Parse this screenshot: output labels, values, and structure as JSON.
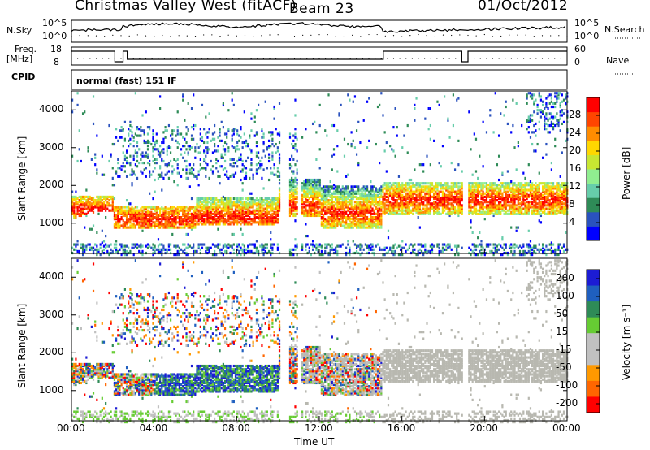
{
  "header": {
    "station": "Christmas Valley West (fitACF)",
    "beam": "Beam 23",
    "date": "01/Oct/2012"
  },
  "noise_panel": {
    "left_label": "N.Sky",
    "left_ticks": [
      "10^5",
      "10^0"
    ],
    "right_label": "N.Search",
    "right_ticks": [
      "10^5",
      "10^0"
    ]
  },
  "freq_panel": {
    "left_label_1": "Freq.",
    "left_label_2": "[MHz]",
    "left_ticks": [
      "18",
      "8"
    ],
    "right_label": "Nave",
    "right_ticks": [
      "60",
      "0"
    ]
  },
  "cpid": {
    "label": "CPID",
    "value": "normal (fast) 151 IF"
  },
  "colors": {
    "power": [
      "#0000ff",
      "#2a52be",
      "#2e8b57",
      "#66cdaa",
      "#90ee90",
      "#c8e632",
      "#ffd700",
      "#ff8c00",
      "#ff4500",
      "#ff0000"
    ],
    "velocity": [
      "#1c1cd4",
      "#1f5fbf",
      "#2e8b57",
      "#66cc33",
      "#c0c0c0",
      "#c0c0c0",
      "#ff9900",
      "#ff6600",
      "#ff0000"
    ],
    "ground_scatter": "#b8b8b0"
  },
  "chart_data": [
    {
      "type": "heatmap",
      "name": "power",
      "ylabel": "Slant Range [km]",
      "yticks": [
        "1000",
        "2000",
        "3000",
        "4000"
      ],
      "ylim": [
        200,
        4500
      ],
      "xlim_hours": [
        0,
        24
      ],
      "colorbar_label": "Power [dB]",
      "colorbar_ticks": [
        "4",
        "8",
        "12",
        "16",
        "20",
        "24",
        "28"
      ],
      "colorbar_range": [
        0,
        32
      ],
      "data_gaps_hours": [
        [
          10.1,
          10.5
        ],
        [
          10.9,
          11.1
        ],
        [
          18.9,
          19.15
        ]
      ]
    },
    {
      "type": "heatmap",
      "name": "velocity",
      "ylabel": "Slant Range [km]",
      "yticks": [
        "1000",
        "2000",
        "3000",
        "4000"
      ],
      "ylim": [
        200,
        4500
      ],
      "xlim_hours": [
        0,
        24
      ],
      "xlabel": "Time UT",
      "xticks": [
        "00:00",
        "04:00",
        "08:00",
        "12:00",
        "16:00",
        "20:00",
        "00:00"
      ],
      "colorbar_label": "Velocity [m s⁻¹]",
      "colorbar_ticks": [
        "200",
        "100",
        "50",
        "15",
        "-15",
        "-50",
        "-100",
        "-200"
      ],
      "colorbar_range": [
        -250,
        250
      ]
    }
  ]
}
